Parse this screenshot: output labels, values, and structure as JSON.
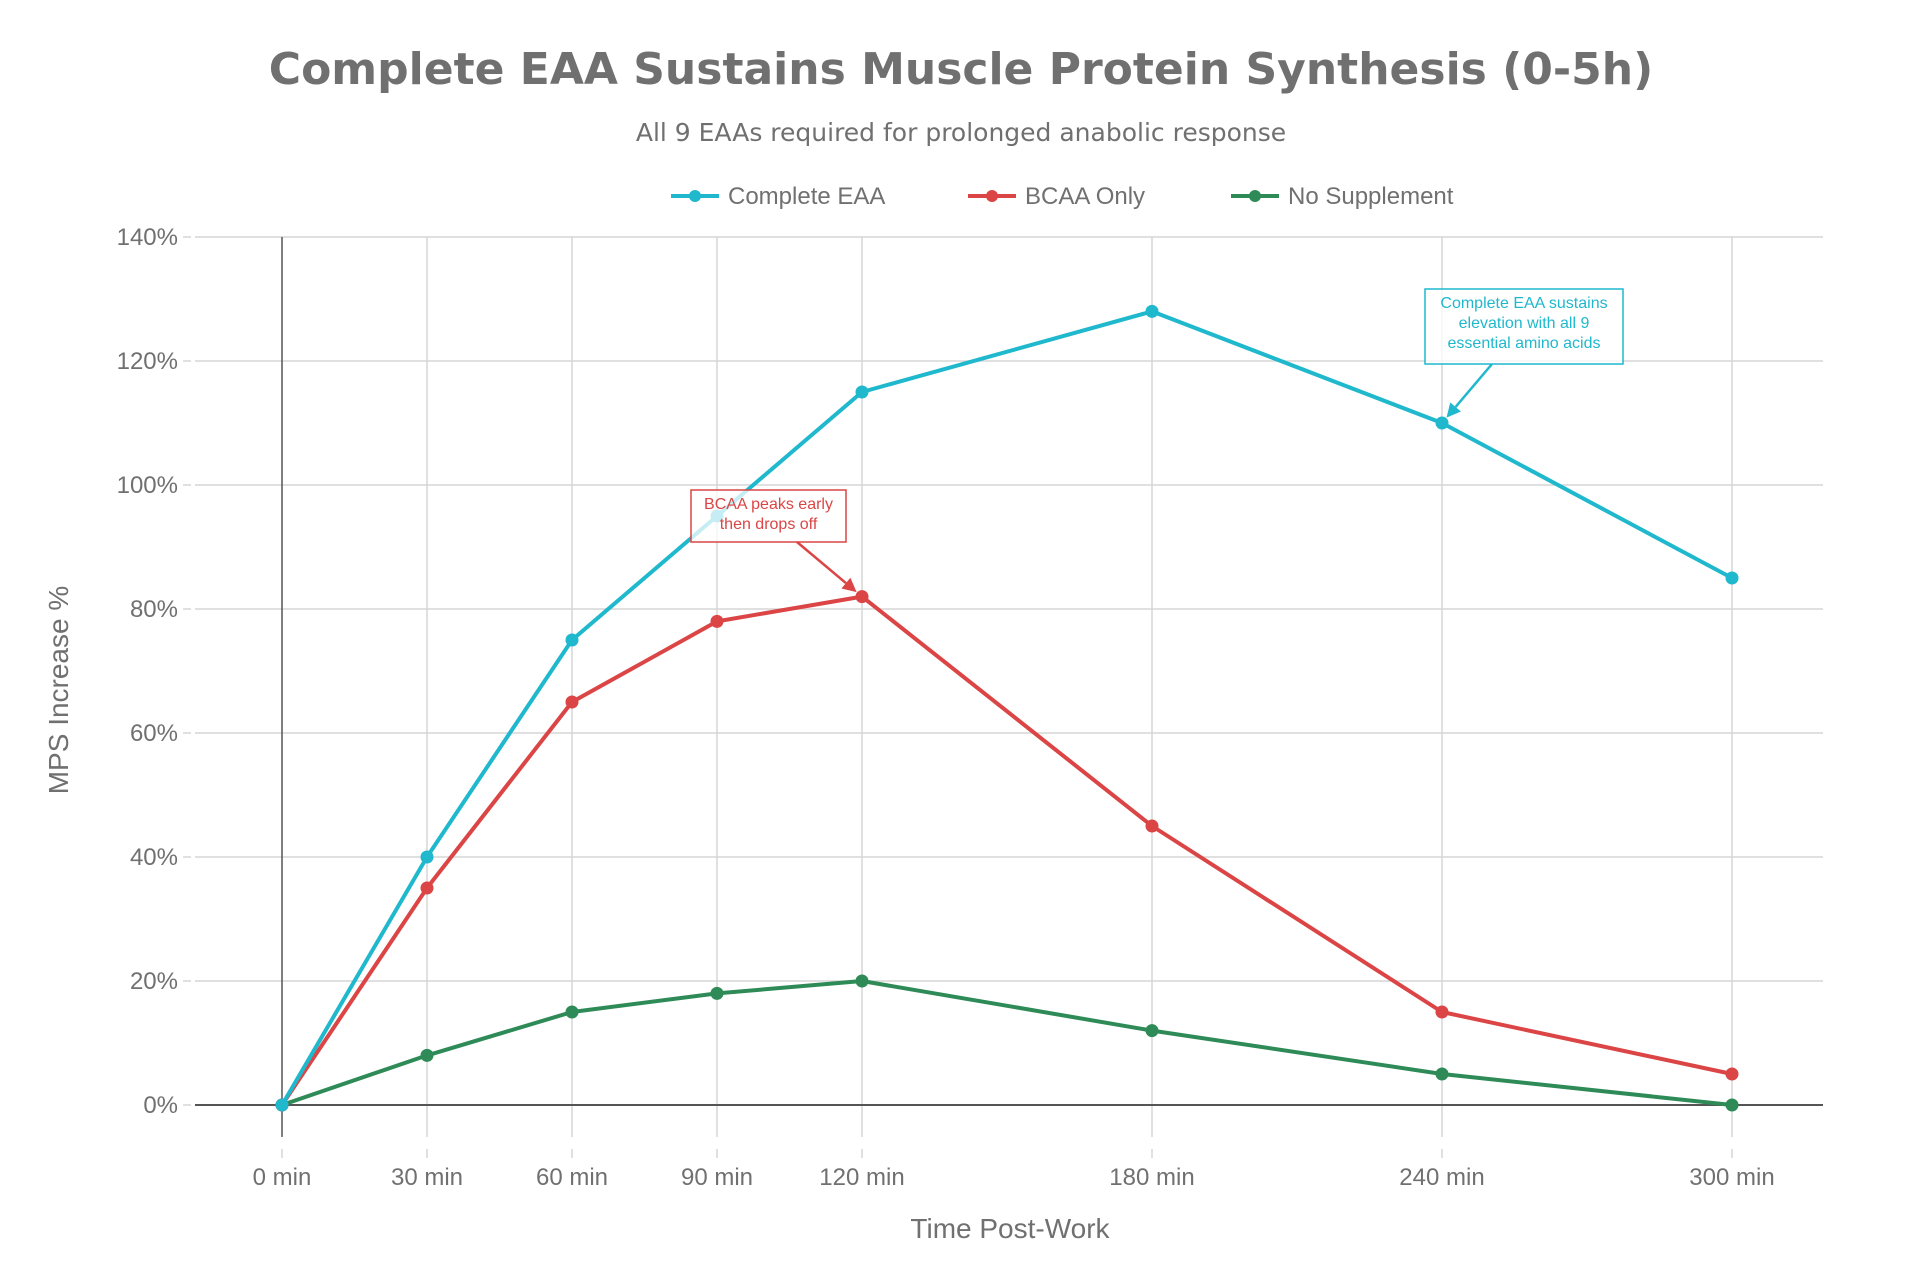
{
  "chart_data": {
    "type": "line",
    "title": "Complete EAA Sustains Muscle Protein Synthesis (0-5h)",
    "subtitle": "All 9 EAAs required for prolonged anabolic response",
    "xlabel": "Time Post-Work",
    "ylabel": "MPS Increase %",
    "x": [
      0,
      30,
      60,
      90,
      120,
      180,
      240,
      300
    ],
    "x_tick_labels": [
      "0 min",
      "30 min",
      "60 min",
      "90 min",
      "120 min",
      "180 min",
      "240 min",
      "300 min"
    ],
    "xlim": [
      -15,
      315
    ],
    "ylim": [
      -5,
      140
    ],
    "y_ticks": [
      0,
      20,
      40,
      60,
      80,
      100,
      120,
      140
    ],
    "y_tick_labels": [
      "0%",
      "20%",
      "40%",
      "60%",
      "80%",
      "100%",
      "120%",
      "140%"
    ],
    "grid": true,
    "legend_position": "top-center",
    "series": [
      {
        "name": "Complete EAA",
        "color": "#1FB8CD",
        "values": [
          0,
          40,
          75,
          95,
          115,
          128,
          110,
          85
        ]
      },
      {
        "name": "BCAA Only",
        "color": "#DB4545",
        "values": [
          0,
          35,
          65,
          78,
          82,
          45,
          15,
          5
        ]
      },
      {
        "name": "No Supplement",
        "color": "#2E8B57",
        "values": [
          0,
          8,
          15,
          18,
          20,
          12,
          5,
          0
        ]
      }
    ],
    "annotations": [
      {
        "series": "BCAA Only",
        "x": 120,
        "y": 82,
        "lines": [
          "BCAA peaks early",
          "then drops off"
        ],
        "color": "#DB4545"
      },
      {
        "series": "Complete EAA",
        "x": 240,
        "y": 110,
        "lines": [
          "Complete EAA sustains",
          "elevation with all 9",
          "essential amino acids"
        ],
        "color": "#1FB8CD"
      }
    ]
  }
}
